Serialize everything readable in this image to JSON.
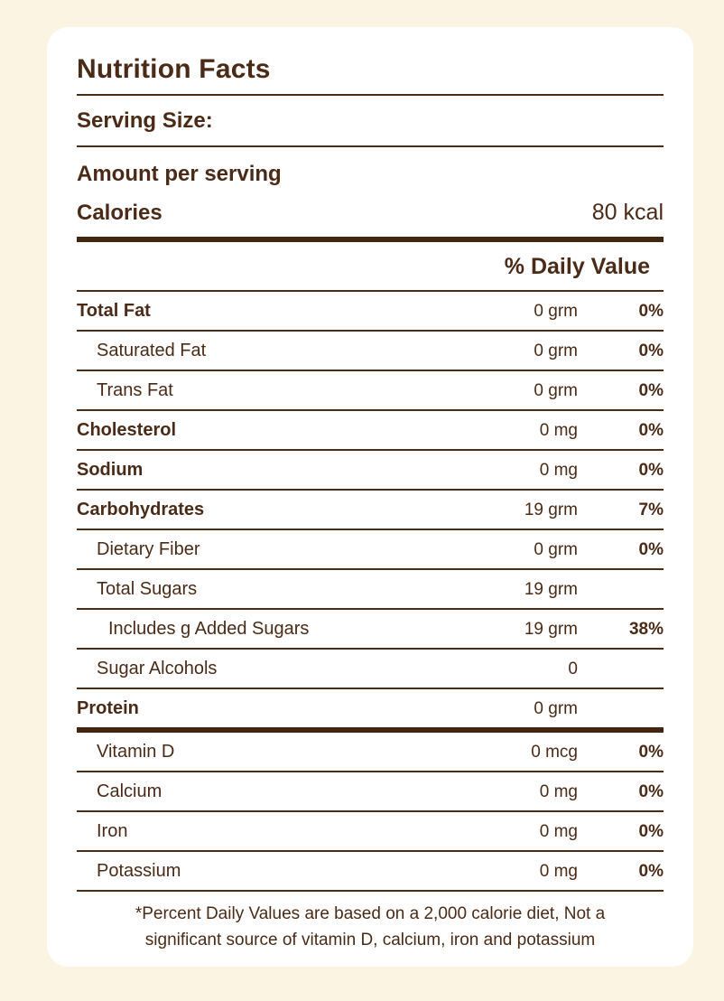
{
  "colors": {
    "page_background": "#FCF4E3",
    "card_background": "#FFFFFF",
    "text_brown": "#4A2B17",
    "divider_brown": "#42260F"
  },
  "header": {
    "title": "Nutrition Facts",
    "serving_size_label": "Serving Size:",
    "amount_per_serving_label": "Amount per serving",
    "calories_label": "Calories",
    "calories_value": "80 kcal",
    "daily_value_header": "% Daily Value"
  },
  "rows": [
    {
      "label": "Total Fat",
      "amount": "0 grm",
      "percent": "0%",
      "bold": true,
      "indent": 0,
      "thick_divider": false
    },
    {
      "label": "Saturated Fat",
      "amount": "0 grm",
      "percent": "0%",
      "bold": false,
      "indent": 1,
      "thick_divider": false
    },
    {
      "label": "Trans Fat",
      "amount": "0 grm",
      "percent": "0%",
      "bold": false,
      "indent": 1,
      "thick_divider": false
    },
    {
      "label": "Cholesterol",
      "amount": "0 mg",
      "percent": "0%",
      "bold": true,
      "indent": 0,
      "thick_divider": false
    },
    {
      "label": "Sodium",
      "amount": "0 mg",
      "percent": "0%",
      "bold": true,
      "indent": 0,
      "thick_divider": false
    },
    {
      "label": "Carbohydrates",
      "amount": "19 grm",
      "percent": "7%",
      "bold": true,
      "indent": 0,
      "thick_divider": false
    },
    {
      "label": "Dietary Fiber",
      "amount": "0 grm",
      "percent": "0%",
      "bold": false,
      "indent": 1,
      "thick_divider": false
    },
    {
      "label": "Total Sugars",
      "amount": "19 grm",
      "percent": "",
      "bold": false,
      "indent": 1,
      "thick_divider": false
    },
    {
      "label": "Includes g Added Sugars",
      "amount": "19 grm",
      "percent": "38%",
      "bold": false,
      "indent": 2,
      "thick_divider": false
    },
    {
      "label": "Sugar Alcohols",
      "amount": "0",
      "percent": "",
      "bold": false,
      "indent": 1,
      "thick_divider": false
    },
    {
      "label": "Protein",
      "amount": "0 grm",
      "percent": "",
      "bold": true,
      "indent": 0,
      "thick_divider": true
    },
    {
      "label": "Vitamin D",
      "amount": "0 mcg",
      "percent": "0%",
      "bold": false,
      "indent": 1,
      "thick_divider": false
    },
    {
      "label": "Calcium",
      "amount": "0 mg",
      "percent": "0%",
      "bold": false,
      "indent": 1,
      "thick_divider": false
    },
    {
      "label": "Iron",
      "amount": "0 mg",
      "percent": "0%",
      "bold": false,
      "indent": 1,
      "thick_divider": false
    },
    {
      "label": "Potassium",
      "amount": "0 mg",
      "percent": "0%",
      "bold": false,
      "indent": 1,
      "thick_divider": false
    }
  ],
  "footnote": "*Percent Daily Values are based on a 2,000 calorie diet, Not a significant source of vitamin D, calcium, iron and potassium"
}
